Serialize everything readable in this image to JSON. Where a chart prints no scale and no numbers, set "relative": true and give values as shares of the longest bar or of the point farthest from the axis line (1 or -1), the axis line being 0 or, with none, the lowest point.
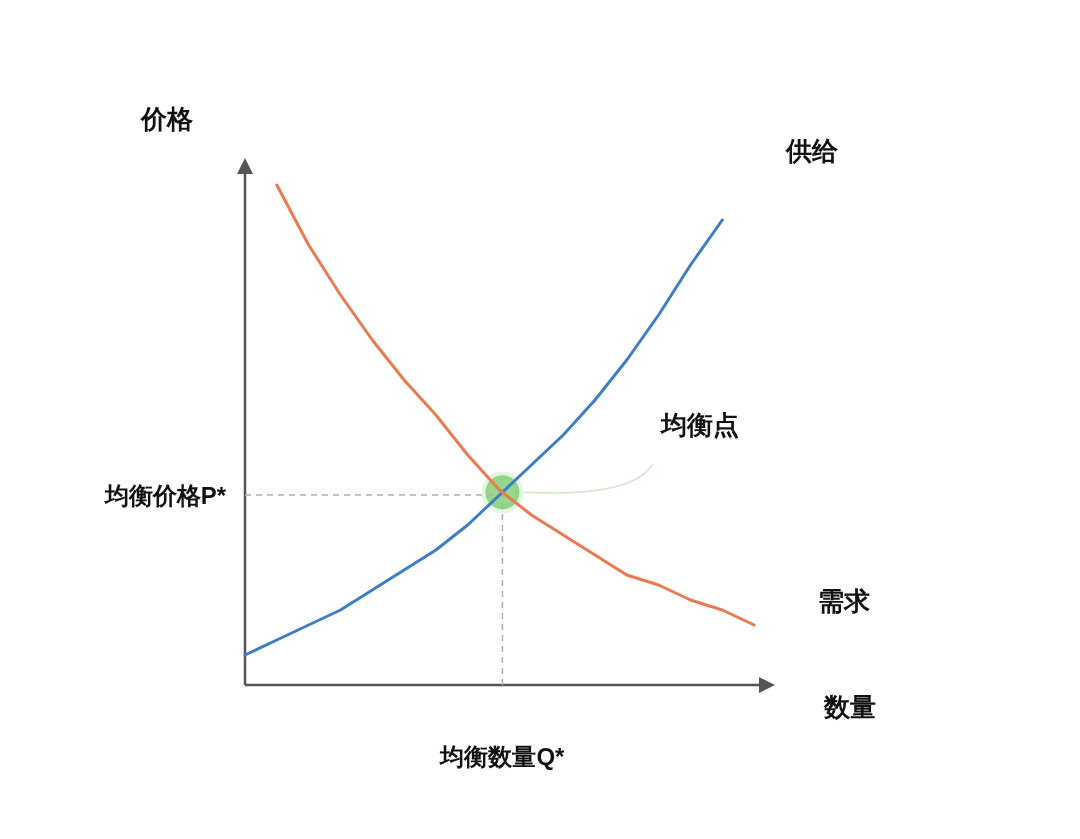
{
  "chart_data": {
    "type": "line",
    "relative": true,
    "ylabel": "价格",
    "xlabel": "数量",
    "marker": "none",
    "line_style": "solid",
    "categories": [
      null,
      null,
      null,
      null,
      null,
      null,
      null,
      null,
      null,
      null,
      null,
      null,
      null,
      null,
      null,
      null,
      null
    ],
    "series": [
      {
        "name": "供给",
        "color": "#3f7dc4",
        "values": [
          0.06,
          0.09,
          0.12,
          0.15,
          0.19,
          0.23,
          0.27,
          0.32,
          0.38,
          0.44,
          0.5,
          0.57,
          0.65,
          0.74,
          0.84,
          0.93,
          null
        ]
      },
      {
        "name": "需求",
        "color": "#ea7a52",
        "values": [
          null,
          1.0,
          0.88,
          0.78,
          0.69,
          0.61,
          0.54,
          0.46,
          0.39,
          0.34,
          0.3,
          0.26,
          0.22,
          0.2,
          0.17,
          0.15,
          0.12
        ]
      }
    ],
    "ref_lines": [
      {
        "axis": "y",
        "value": 0.38,
        "label": "均衡价格P*",
        "color": "#b0b0b0",
        "line_style": "dashed"
      }
    ],
    "annotations": [
      "均衡点",
      "均衡数量Q*"
    ]
  }
}
